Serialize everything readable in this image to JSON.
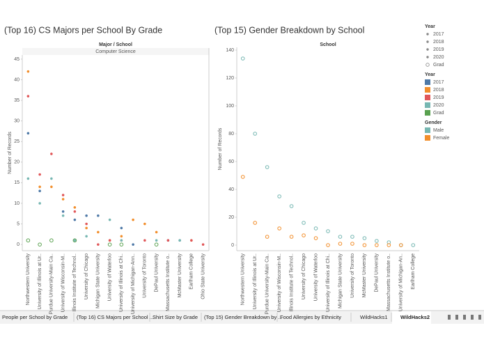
{
  "chart_data": [
    {
      "type": "scatter",
      "title": "(Top 16) CS Majors per School By Grade",
      "header": "Major / School",
      "subheader": "Computer Science",
      "y_label": "Number of Records",
      "categories": [
        "Northwestern University",
        "University of Illinois at Ur..",
        "Purdue University-Main Ca..",
        "University of Wisconsin-M..",
        "Illinois Institute of Technol..",
        "University of Chicago",
        "Michigan State University",
        "University of Waterloo",
        "University of Illinois at Chi..",
        "University of Michigan-Ann..",
        "University of Toronto",
        "DePaul University",
        "Massachusetts Institute o..",
        "McMaster University",
        "Earlham College",
        "Ohio State University"
      ],
      "series": [
        {
          "name": "2017",
          "color": "#4e79a7",
          "values": [
            27,
            13,
            null,
            8,
            6,
            7,
            7,
            null,
            4,
            0,
            null,
            null,
            1,
            1,
            null,
            null
          ]
        },
        {
          "name": "2018",
          "color": "#f28e2b",
          "values": [
            42,
            14,
            14,
            11,
            9,
            4,
            3,
            1,
            2,
            6,
            5,
            3,
            null,
            null,
            1,
            null
          ]
        },
        {
          "name": "2019",
          "color": "#e15759",
          "values": [
            36,
            17,
            22,
            12,
            8,
            5,
            0,
            1,
            1,
            null,
            1,
            null,
            1,
            null,
            1,
            0
          ]
        },
        {
          "name": "2020",
          "color": "#76b7b2",
          "values": [
            16,
            10,
            16,
            7,
            1,
            2,
            null,
            6,
            1,
            null,
            null,
            1,
            null,
            1,
            null,
            null
          ]
        },
        {
          "name": "Grad",
          "color": "#59a14f",
          "values": [
            1,
            0,
            1,
            null,
            1,
            null,
            null,
            0,
            0,
            null,
            null,
            0,
            null,
            null,
            null,
            null
          ]
        }
      ],
      "ylim": [
        -1.5,
        46
      ],
      "yticks": [
        0,
        5,
        10,
        15,
        20,
        25,
        30,
        35,
        40,
        45
      ],
      "grid": false
    },
    {
      "type": "scatter",
      "title": "(Top 15) Gender Breakdown by School",
      "header": "School",
      "y_label": "Number of Records",
      "categories": [
        "Northwestern University",
        "University of Illinois at Ur..",
        "Purdue University-Main Ca..",
        "University of Wisconsin-M..",
        "Illinois Institute of Technol..",
        "University of Chicago",
        "University of Waterloo",
        "University of Illinois at Chi..",
        "Michigan State University",
        "University of Toronto",
        "McMaster University",
        "DePaul University",
        "Massachusetts Institute o..",
        "University of Michigan-An..",
        "Earlham College"
      ],
      "series": [
        {
          "name": "Male",
          "color": "#76b7b2",
          "values": [
            134,
            80,
            56,
            35,
            28,
            16,
            12,
            10,
            6,
            6,
            5,
            3,
            2,
            0,
            0
          ]
        },
        {
          "name": "Female",
          "color": "#f28e2b",
          "values": [
            49,
            16,
            6,
            12,
            6,
            7,
            5,
            0,
            1,
            1,
            0,
            0,
            0,
            0,
            null
          ]
        }
      ],
      "ylim": [
        -4,
        142
      ],
      "yticks": [
        0,
        20,
        40,
        60,
        80,
        100,
        120,
        140
      ],
      "grid": false
    }
  ],
  "legends": {
    "year_shape_title": "Year",
    "year_color_title": "Year",
    "gender_title": "Gender"
  },
  "tabs": [
    "People per School by Grade",
    "(Top 16) CS Majors per School ...",
    "Shirt Size by Grade",
    "(Top 15) Gender Breakdown by ...",
    "Food Allergies by Ethnicity",
    "WildHacks1",
    "WildHacks2"
  ]
}
